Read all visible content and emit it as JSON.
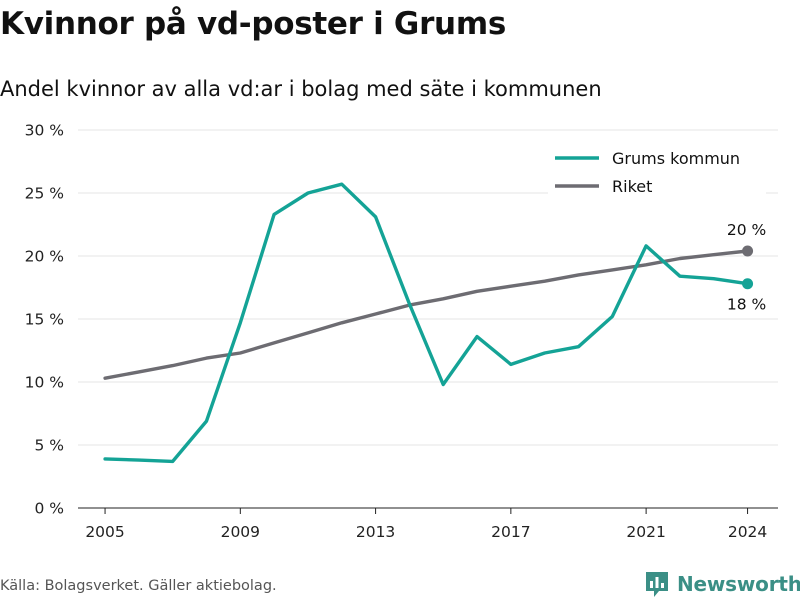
{
  "title": "Kvinnor på vd-poster i Grums",
  "subtitle": "Andel kvinnor av alla vd:ar i bolag med säte i kommunen",
  "source": "Källa: Bolagsverket. Gäller aktiebolag.",
  "brand": {
    "name": "Newsworthy",
    "color": "#3b8f86",
    "icon": "bar-chart-logo-icon"
  },
  "chart_data": {
    "type": "line",
    "xlim": [
      2004.2,
      2024.9
    ],
    "ylim": [
      0,
      30
    ],
    "x_ticks": [
      2005,
      2009,
      2013,
      2017,
      2021,
      2024
    ],
    "y_ticks": [
      0,
      5,
      10,
      15,
      20,
      25,
      30
    ],
    "y_tick_labels": [
      "0 %",
      "5 %",
      "10 %",
      "15 %",
      "20 %",
      "25 %",
      "30 %"
    ],
    "grid": "horizontal",
    "legend_position": "top-right",
    "x": [
      2005,
      2006,
      2007,
      2008,
      2009,
      2010,
      2011,
      2012,
      2013,
      2014,
      2015,
      2016,
      2017,
      2018,
      2019,
      2020,
      2021,
      2022,
      2023,
      2024
    ],
    "series": [
      {
        "name": "Grums kommun",
        "color": "#14a396",
        "values": [
          3.9,
          3.8,
          3.7,
          6.9,
          14.7,
          23.3,
          25.0,
          25.7,
          23.1,
          16.2,
          9.8,
          13.6,
          11.4,
          12.3,
          12.8,
          15.2,
          20.8,
          18.4,
          18.2,
          17.8
        ],
        "end_label": "18 %",
        "end_label_position": "below"
      },
      {
        "name": "Riket",
        "color": "#6d6c72",
        "values": [
          10.3,
          10.8,
          11.3,
          11.9,
          12.3,
          13.1,
          13.9,
          14.7,
          15.4,
          16.1,
          16.6,
          17.2,
          17.6,
          18.0,
          18.5,
          18.9,
          19.3,
          19.8,
          20.1,
          20.4
        ],
        "end_label": "20 %",
        "end_label_position": "above"
      }
    ]
  }
}
